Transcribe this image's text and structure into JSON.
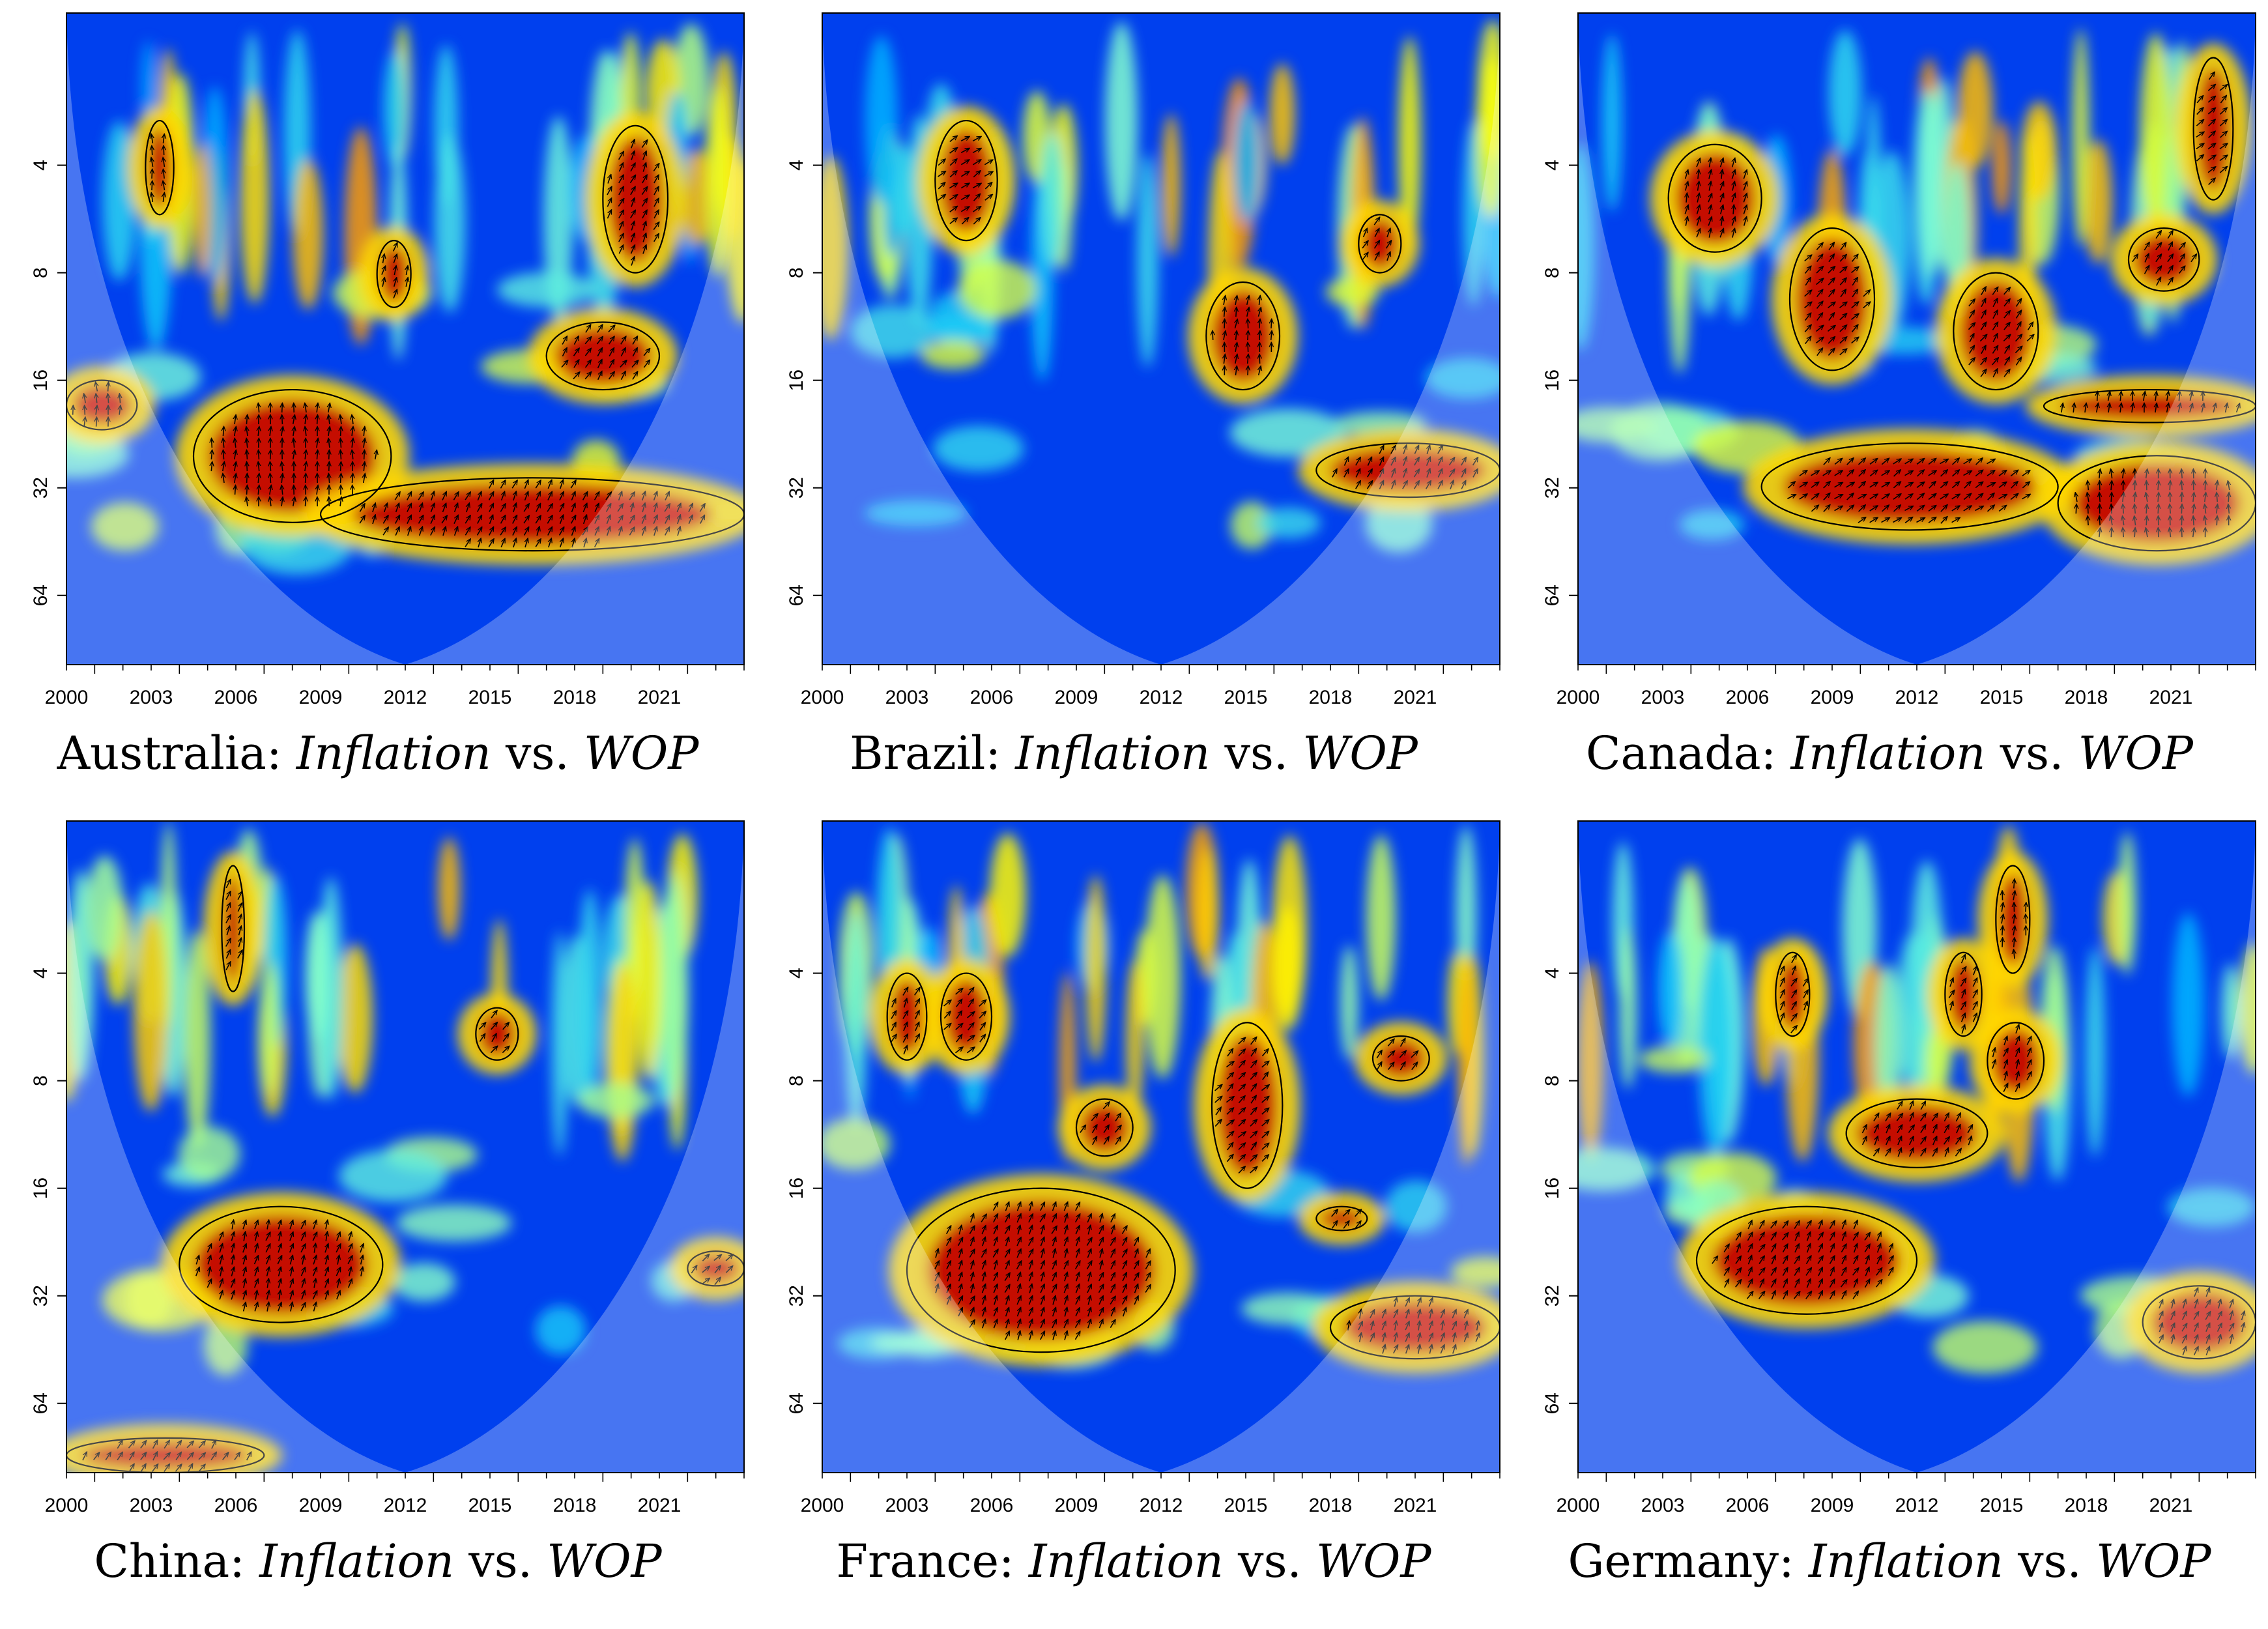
{
  "figure": {
    "panels": [
      {
        "country": "Australia",
        "sep": ": ",
        "var1": "Inflation",
        "vs": " vs. ",
        "var2": "WOP"
      },
      {
        "country": "Brazil",
        "sep": ": ",
        "var1": "Inflation",
        "vs": " vs. ",
        "var2": "WOP"
      },
      {
        "country": "Canada",
        "sep": ": ",
        "var1": "Inflation",
        "vs": " vs. ",
        "var2": "WOP"
      },
      {
        "country": "China",
        "sep": ": ",
        "var1": "Inflation",
        "vs": " vs. ",
        "var2": "WOP"
      },
      {
        "country": "France",
        "sep": ": ",
        "var1": "Inflation",
        "vs": " vs. ",
        "var2": "WOP"
      },
      {
        "country": "Germany",
        "sep": ": ",
        "var1": "Inflation",
        "vs": " vs. ",
        "var2": "WOP"
      }
    ]
  },
  "colors": {
    "scale": [
      "#00008b",
      "#0033ff",
      "#00bfff",
      "#7fffd4",
      "#ffff00",
      "#ff8c00",
      "#ff2000",
      "#a50000"
    ],
    "contour": "#000000",
    "arrow": "#000000"
  },
  "chart_data": {
    "type": "heatmap",
    "kind": "wavelet coherence",
    "x_ticks": [
      "2000",
      "2003",
      "2006",
      "2009",
      "2012",
      "2015",
      "2018",
      "2021"
    ],
    "x_values": [
      2000,
      2003,
      2006,
      2009,
      2012,
      2015,
      2018,
      2021
    ],
    "xlim": [
      2000,
      2024
    ],
    "y_ticks": [
      "4",
      "8",
      "16",
      "32",
      "64"
    ],
    "y_values": [
      4,
      8,
      16,
      32,
      64
    ],
    "ylim": [
      1.5,
      100
    ],
    "y_scale": "log2, inverted",
    "cone_of_influence": true,
    "panels": [
      {
        "country": "Australia",
        "regions": [
          {
            "t": [
              2004.5,
              2011.5
            ],
            "p": [
              17,
              40
            ]
          },
          {
            "t": [
              2009,
              2024
            ],
            "p": [
              30,
              48
            ]
          },
          {
            "t": [
              2017,
              2021
            ],
            "p": [
              11,
              17
            ]
          },
          {
            "t": [
              2019,
              2021.3
            ],
            "p": [
              3.1,
              8
            ]
          },
          {
            "t": [
              2011,
              2012.2
            ],
            "p": [
              6.5,
              10
            ]
          },
          {
            "t": [
              2002.8,
              2003.8
            ],
            "p": [
              3,
              5.5
            ]
          },
          {
            "t": [
              2000,
              2002.5
            ],
            "p": [
              16,
              22
            ]
          }
        ]
      },
      {
        "country": "Brazil",
        "regions": [
          {
            "t": [
              2013.6,
              2016.2
            ],
            "p": [
              8.5,
              17
            ]
          },
          {
            "t": [
              2017.5,
              2024
            ],
            "p": [
              24,
              34
            ]
          },
          {
            "t": [
              2004,
              2006.2
            ],
            "p": [
              3,
              6.5
            ]
          },
          {
            "t": [
              2019,
              2020.5
            ],
            "p": [
              5.5,
              8
            ]
          }
        ]
      },
      {
        "country": "Canada",
        "regions": [
          {
            "t": [
              2003.2,
              2006.5
            ],
            "p": [
              3.5,
              7
            ]
          },
          {
            "t": [
              2007.5,
              2010.5
            ],
            "p": [
              6,
              15
            ]
          },
          {
            "t": [
              2013.3,
              2016.3
            ],
            "p": [
              8,
              17
            ]
          },
          {
            "t": [
              2016.5,
              2024
            ],
            "p": [
              17,
              21
            ]
          },
          {
            "t": [
              2006.5,
              2017
            ],
            "p": [
              24,
              42
            ]
          },
          {
            "t": [
              2017,
              2024
            ],
            "p": [
              26,
              48
            ]
          },
          {
            "t": [
              2019.5,
              2022
            ],
            "p": [
              6,
              9
            ]
          },
          {
            "t": [
              2021.8,
              2023.2
            ],
            "p": [
              2,
              5
            ]
          }
        ]
      },
      {
        "country": "China",
        "regions": [
          {
            "t": [
              2004,
              2011.2
            ],
            "p": [
              18,
              38
            ]
          },
          {
            "t": [
              2000,
              2007
            ],
            "p": [
              80,
              100
            ]
          },
          {
            "t": [
              2014.5,
              2016
            ],
            "p": [
              5,
              7
            ]
          },
          {
            "t": [
              2022,
              2024
            ],
            "p": [
              24,
              30
            ]
          },
          {
            "t": [
              2005.5,
              2006.3
            ],
            "p": [
              2,
              4.5
            ]
          }
        ]
      },
      {
        "country": "France",
        "regions": [
          {
            "t": [
              2003,
              2012.5
            ],
            "p": [
              16,
              46
            ]
          },
          {
            "t": [
              2002.3,
              2003.7
            ],
            "p": [
              4,
              7
            ]
          },
          {
            "t": [
              2004.2,
              2006
            ],
            "p": [
              4,
              7
            ]
          },
          {
            "t": [
              2013.8,
              2016.3
            ],
            "p": [
              5.5,
              16
            ]
          },
          {
            "t": [
              2017.5,
              2019.3
            ],
            "p": [
              18,
              21
            ]
          },
          {
            "t": [
              2018,
              2024
            ],
            "p": [
              32,
              48
            ]
          },
          {
            "t": [
              2009,
              2011
            ],
            "p": [
              9,
              13
            ]
          },
          {
            "t": [
              2019.5,
              2021.5
            ],
            "p": [
              6,
              8
            ]
          }
        ]
      },
      {
        "country": "Germany",
        "regions": [
          {
            "t": [
              2004.2,
              2012
            ],
            "p": [
              18,
              36
            ]
          },
          {
            "t": [
              2009.5,
              2014.5
            ],
            "p": [
              9,
              14
            ]
          },
          {
            "t": [
              2014.5,
              2016.5
            ],
            "p": [
              5.5,
              9
            ]
          },
          {
            "t": [
              2020,
              2024
            ],
            "p": [
              30,
              48
            ]
          },
          {
            "t": [
              2014.8,
              2016
            ],
            "p": [
              2,
              4
            ]
          },
          {
            "t": [
              2007,
              2008.2
            ],
            "p": [
              3.5,
              6
            ]
          },
          {
            "t": [
              2013,
              2014.3
            ],
            "p": [
              3.5,
              6
            ]
          }
        ]
      }
    ]
  }
}
